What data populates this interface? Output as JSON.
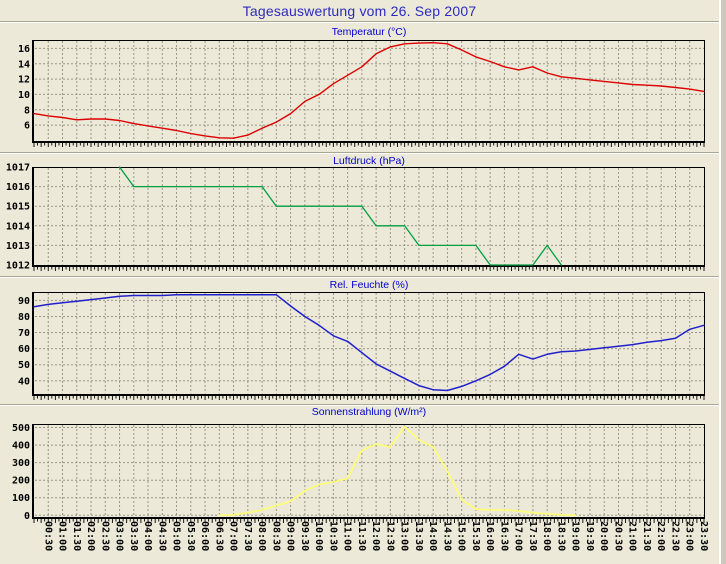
{
  "page": {
    "title": "Tagesauswertung vom 26. Sep 2007"
  },
  "colors": {
    "background": "#ece9d8",
    "grid": "#99958a",
    "frame": "#000000",
    "main_title": "#2b2bbe",
    "chart_title": "#0000cc",
    "axis_label": "#000000",
    "temperature": "#dd0000",
    "pressure": "#00a040",
    "humidity": "#2020cc",
    "radiation": "#ffff70"
  },
  "x_axis": {
    "start": "00:00",
    "step_minutes": 30,
    "labels": [
      "00:30",
      "01:00",
      "01:30",
      "02:00",
      "02:30",
      "03:00",
      "03:30",
      "04:00",
      "04:30",
      "05:00",
      "05:30",
      "06:00",
      "06:30",
      "07:00",
      "07:30",
      "08:00",
      "08:30",
      "09:00",
      "09:30",
      "10:00",
      "10:30",
      "11:00",
      "11:30",
      "12:00",
      "12:30",
      "13:00",
      "13:30",
      "14:00",
      "14:30",
      "15:00",
      "15:30",
      "16:00",
      "16:30",
      "17:00",
      "17:30",
      "18:00",
      "18:30",
      "19:00",
      "19:30",
      "20:00",
      "20:30",
      "21:00",
      "21:30",
      "22:00",
      "22:30",
      "23:00",
      "23:30"
    ]
  },
  "chart_data": [
    {
      "id": "temperature",
      "type": "line",
      "title": "Temperatur (°C)",
      "color_key": "temperature",
      "y_ticks": [
        16,
        14,
        12,
        10,
        8,
        6
      ],
      "ylim": [
        3.93,
        17.1
      ],
      "x_start": "00:00",
      "x_step_minutes": 30,
      "grid": true,
      "values": [
        7.5,
        7.2,
        7.0,
        6.7,
        6.8,
        6.8,
        6.6,
        6.2,
        5.9,
        5.6,
        5.3,
        4.9,
        4.6,
        4.35,
        4.3,
        4.7,
        5.6,
        6.4,
        7.5,
        9.1,
        10.0,
        11.4,
        12.5,
        13.6,
        15.3,
        16.2,
        16.6,
        16.7,
        16.75,
        16.6,
        15.8,
        14.9,
        14.3,
        13.6,
        13.2,
        13.6,
        12.8,
        12.3,
        12.1,
        11.9,
        11.7,
        11.5,
        11.3,
        11.2,
        11.1,
        10.9,
        10.7,
        10.4
      ]
    },
    {
      "id": "pressure",
      "type": "line",
      "title": "Luftdruck (hPa)",
      "color_key": "pressure",
      "y_ticks": [
        1017,
        1016,
        1015,
        1014,
        1013,
        1012
      ],
      "ylim": [
        1012,
        1017
      ],
      "x_start": "00:00",
      "x_step_minutes": 30,
      "grid": true,
      "values": [
        null,
        null,
        null,
        null,
        null,
        null,
        1017,
        1016,
        1016,
        1016,
        1016,
        1016,
        1016,
        1016,
        1016,
        1016,
        1016,
        1015,
        1015,
        1015,
        1015,
        1015,
        1015,
        1015,
        1014,
        1014,
        1014,
        1013,
        1013,
        1013,
        1013,
        1013,
        1012,
        1012,
        1012,
        1012,
        1013,
        1012,
        null,
        null,
        null,
        null,
        null,
        null,
        null,
        null,
        null,
        null
      ]
    },
    {
      "id": "humidity",
      "type": "line",
      "title": "Rel. Feuchte (%)",
      "color_key": "humidity",
      "y_ticks": [
        90,
        80,
        70,
        60,
        50,
        40
      ],
      "ylim": [
        31.8,
        95.2
      ],
      "x_start": "00:00",
      "x_step_minutes": 30,
      "grid": true,
      "values": [
        86,
        87.5,
        88.5,
        89.5,
        90.5,
        91.5,
        92.5,
        93,
        93,
        93,
        93.5,
        93.5,
        93.5,
        93.5,
        93.5,
        93.5,
        93.5,
        93.5,
        86.5,
        80,
        74.5,
        68,
        64.5,
        57.5,
        50.5,
        46,
        41.5,
        37,
        34.5,
        34,
        36.5,
        40,
        44,
        49,
        56.5,
        53.5,
        56.5,
        58,
        58.5,
        59.5,
        60.5,
        61.5,
        62.5,
        64,
        65,
        66.5,
        72,
        74.5
      ]
    },
    {
      "id": "radiation",
      "type": "line",
      "title": "Sonnenstrahlung (W/m²)",
      "color_key": "radiation",
      "y_ticks": [
        500,
        400,
        300,
        200,
        100,
        0
      ],
      "ylim": [
        -9.7,
        520
      ],
      "x_start": "00:00",
      "x_step_minutes": 30,
      "grid": true,
      "values": [
        null,
        null,
        null,
        null,
        null,
        null,
        null,
        null,
        null,
        null,
        null,
        null,
        null,
        0,
        3,
        15,
        30,
        55,
        80,
        140,
        175,
        190,
        210,
        370,
        405,
        390,
        505,
        430,
        390,
        250,
        90,
        35,
        30,
        30,
        25,
        15,
        8,
        3,
        0,
        null,
        null,
        null,
        null,
        null,
        null,
        null,
        null,
        null
      ]
    }
  ]
}
